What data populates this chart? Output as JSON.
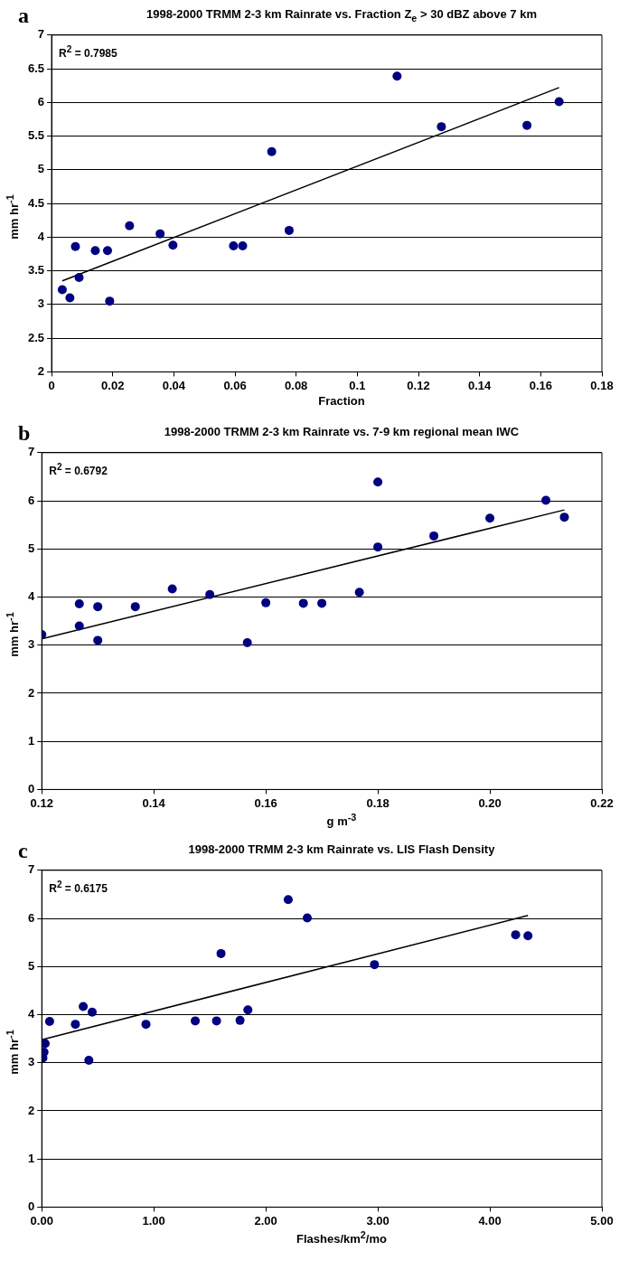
{
  "chart_data": [
    {
      "type": "scatter",
      "title": "1998-2000 TRMM 2-3 km Rainrate vs. Fraction Z$_{e}$ > 30 dBZ above 7 km",
      "xlabel": "Fraction",
      "ylabel": "mm hr$^{-1}$",
      "xlim": [
        0,
        0.18
      ],
      "ylim": [
        2,
        7
      ],
      "xticks": [
        0,
        0.02,
        0.04,
        0.06,
        0.08,
        0.1,
        0.12,
        0.14,
        0.16,
        0.18
      ],
      "yticks": [
        2,
        2.5,
        3,
        3.5,
        4,
        4.5,
        5,
        5.5,
        6,
        6.5,
        7
      ],
      "grid": "y",
      "marker": "circle",
      "annotations": [
        "a",
        "R$^{2}$ = 0.7985"
      ],
      "series": [
        {
          "type": "scatter",
          "color": "#000080",
          "x": [
            0.0035,
            0.006,
            0.0078,
            0.009,
            0.0143,
            0.0183,
            0.019,
            0.0255,
            0.0355,
            0.0397,
            0.0595,
            0.0625,
            0.072,
            0.0777,
            0.113,
            0.1275,
            0.1555,
            0.166
          ],
          "values": [
            3.22,
            3.1,
            3.86,
            3.4,
            3.8,
            3.8,
            3.05,
            4.17,
            4.05,
            3.88,
            3.87,
            3.87,
            5.27,
            4.1,
            6.39,
            5.64,
            5.66,
            6.01
          ]
        },
        {
          "type": "line",
          "color": "#000000",
          "marker": "none",
          "x": [
            0.0035,
            0.166
          ],
          "values": [
            3.35,
            6.22
          ]
        }
      ]
    },
    {
      "type": "scatter",
      "title": "1998-2000 TRMM 2-3 km Rainrate vs.  7-9 km regional mean IWC",
      "xlabel": "g m$^{-3}$",
      "ylabel": "mm hr$^{-1}$",
      "xlim": [
        0.12,
        0.22
      ],
      "ylim": [
        0,
        7
      ],
      "xticks": [
        0.12,
        0.14,
        0.16,
        0.18,
        {
          "value": 0.2,
          "label": "0.20"
        },
        0.22
      ],
      "yticks": [
        0,
        1,
        2,
        3,
        4,
        5,
        6,
        7
      ],
      "grid": "y",
      "marker": "circle",
      "annotations": [
        "b",
        "R$^{2}$ = 0.6792"
      ],
      "series": [
        {
          "type": "scatter",
          "color": "#000080",
          "x": [
            0.12,
            0.1267,
            0.1267,
            0.13,
            0.13,
            0.1367,
            0.1433,
            0.15,
            0.1567,
            0.16,
            0.1667,
            0.17,
            0.1767,
            0.18,
            0.18,
            0.19,
            0.2,
            0.21,
            0.2133
          ],
          "values": [
            3.22,
            3.86,
            3.4,
            3.8,
            3.1,
            3.8,
            4.17,
            4.05,
            3.05,
            3.88,
            3.87,
            3.87,
            4.1,
            6.39,
            5.04,
            5.27,
            5.64,
            6.01,
            5.66
          ]
        },
        {
          "type": "line",
          "color": "#000000",
          "marker": "none",
          "x": [
            0.12,
            0.2133
          ],
          "values": [
            3.13,
            5.81
          ]
        }
      ]
    },
    {
      "type": "scatter",
      "title": "1998-2000 TRMM 2-3 km Rainrate vs. LIS Flash Density",
      "xlabel": "Flashes/km$^{2}$/mo",
      "ylabel": "mm hr$^{-1}$",
      "xlim": [
        0,
        5
      ],
      "ylim": [
        0,
        7
      ],
      "xticks": [
        {
          "value": 0,
          "label": "0.00"
        },
        {
          "value": 1,
          "label": "1.00"
        },
        {
          "value": 2,
          "label": "2.00"
        },
        {
          "value": 3,
          "label": "3.00"
        },
        {
          "value": 4,
          "label": "4.00"
        },
        {
          "value": 5,
          "label": "5.00"
        }
      ],
      "yticks": [
        0,
        1,
        2,
        3,
        4,
        5,
        6,
        7
      ],
      "grid": "y",
      "marker": "circle",
      "annotations": [
        "c",
        "R$^{2}$ = 0.6175"
      ],
      "series": [
        {
          "type": "scatter",
          "color": "#000080",
          "x": [
            0.01,
            0.02,
            0.03,
            0.07,
            0.3,
            0.37,
            0.42,
            0.45,
            0.93,
            1.37,
            1.56,
            1.77,
            1.84,
            1.6,
            2.2,
            2.37,
            2.97,
            4.23,
            4.34
          ],
          "values": [
            3.1,
            3.22,
            3.4,
            3.86,
            3.8,
            4.17,
            3.05,
            4.05,
            3.8,
            3.87,
            3.87,
            3.88,
            4.1,
            5.27,
            6.39,
            6.01,
            5.04,
            5.66,
            5.64
          ]
        },
        {
          "type": "line",
          "color": "#000000",
          "marker": "none",
          "x": [
            0,
            4.34
          ],
          "values": [
            3.48,
            6.06
          ]
        }
      ]
    }
  ]
}
